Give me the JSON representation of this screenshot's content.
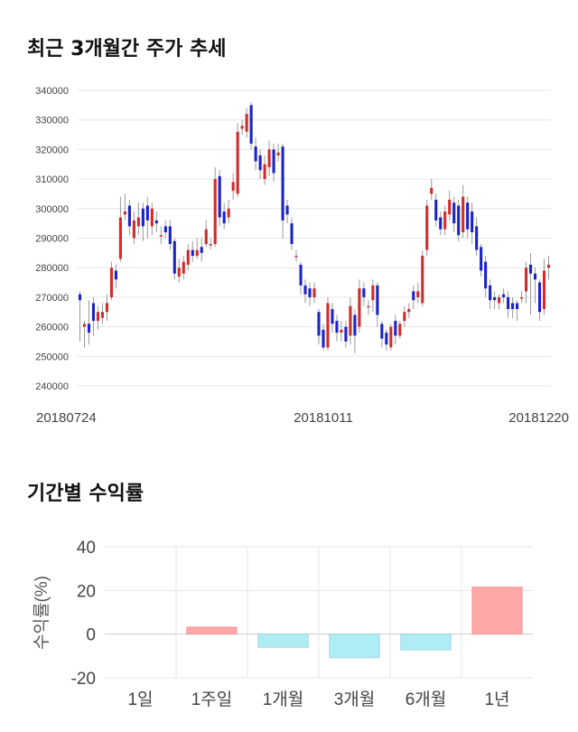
{
  "titles": {
    "price_trend": "최근 3개월간 주가 추세",
    "period_return": "기간별 수익률"
  },
  "colors": {
    "up": "#d42a2a",
    "down": "#1a22c9",
    "positive_bar": "#ffa8a8",
    "negative_bar": "#b0ecf4",
    "grid": "#e6e6e6"
  },
  "chart_data": [
    {
      "type": "candlestick",
      "title": "",
      "ylim": [
        240000,
        340000
      ],
      "y_ticks": [
        "340000",
        "330000",
        "320000",
        "310000",
        "300000",
        "290000",
        "280000",
        "270000",
        "260000",
        "250000",
        "240000"
      ],
      "x_ticks": [
        {
          "label": "20180724",
          "index": 0
        },
        {
          "label": "20181011",
          "index": 54
        },
        {
          "label": "20181220",
          "index": 103
        }
      ],
      "grid": true,
      "candles": [
        [
          271000,
          269000,
          272000,
          255000
        ],
        [
          260000,
          261000,
          262000,
          253000
        ],
        [
          261000,
          258000,
          269000,
          254000
        ],
        [
          268000,
          262000,
          270000,
          257000
        ],
        [
          262000,
          265000,
          267000,
          259000
        ],
        [
          263000,
          265000,
          268000,
          261000
        ],
        [
          265000,
          268000,
          271000,
          262000
        ],
        [
          270000,
          280000,
          282000,
          269000
        ],
        [
          279000,
          276000,
          281000,
          273000
        ],
        [
          283000,
          297000,
          304000,
          282000
        ],
        [
          298000,
          299000,
          305000,
          296000
        ],
        [
          301000,
          294000,
          303000,
          291000
        ],
        [
          290000,
          296000,
          299000,
          288000
        ],
        [
          294000,
          297000,
          302000,
          291000
        ],
        [
          300000,
          294000,
          302000,
          289000
        ],
        [
          301000,
          296000,
          304000,
          290000
        ],
        [
          294000,
          300000,
          302000,
          291000
        ],
        [
          296000,
          295000,
          299000,
          292000
        ],
        [
          291000,
          291000,
          294000,
          288000
        ],
        [
          294000,
          292000,
          296000,
          290000
        ],
        [
          294000,
          288000,
          296000,
          286000
        ],
        [
          289000,
          278000,
          290000,
          276000
        ],
        [
          277000,
          280000,
          283000,
          275000
        ],
        [
          278000,
          282000,
          284000,
          276000
        ],
        [
          281000,
          286000,
          288000,
          279000
        ],
        [
          286000,
          284000,
          289000,
          282000
        ],
        [
          284000,
          286000,
          290000,
          283000
        ],
        [
          287000,
          285000,
          290000,
          282000
        ],
        [
          288000,
          293000,
          296000,
          287000
        ],
        [
          288000,
          288000,
          290000,
          286000
        ],
        [
          288000,
          310000,
          314000,
          287000
        ],
        [
          311000,
          297000,
          313000,
          294000
        ],
        [
          299000,
          295000,
          302000,
          293000
        ],
        [
          297000,
          300000,
          303000,
          295000
        ],
        [
          306000,
          309000,
          312000,
          303000
        ],
        [
          305000,
          326000,
          329000,
          304000
        ],
        [
          327000,
          328000,
          330000,
          325000
        ],
        [
          326000,
          332000,
          334000,
          324000
        ],
        [
          335000,
          322000,
          336000,
          320000
        ],
        [
          321000,
          316000,
          324000,
          313000
        ],
        [
          318000,
          313000,
          320000,
          310000
        ],
        [
          310000,
          315000,
          318000,
          308000
        ],
        [
          314000,
          320000,
          323000,
          311000
        ],
        [
          320000,
          312000,
          322000,
          309000
        ],
        [
          318000,
          319000,
          322000,
          316000
        ],
        [
          321000,
          296000,
          322000,
          290000
        ],
        [
          301000,
          298000,
          303000,
          295000
        ],
        [
          295000,
          288000,
          297000,
          286000
        ],
        [
          284000,
          284000,
          286000,
          282000
        ],
        [
          281000,
          274000,
          282000,
          271000
        ],
        [
          274000,
          271000,
          276000,
          268000
        ],
        [
          273000,
          270000,
          275000,
          267000
        ],
        [
          270000,
          273000,
          275000,
          268000
        ],
        [
          265000,
          257000,
          266000,
          254000
        ],
        [
          259000,
          253000,
          261000,
          252000
        ],
        [
          253000,
          268000,
          270000,
          252000
        ],
        [
          266000,
          261000,
          268000,
          258000
        ],
        [
          262000,
          258000,
          264000,
          255000
        ],
        [
          258000,
          259000,
          262000,
          255000
        ],
        [
          260000,
          255000,
          262000,
          253000
        ],
        [
          257000,
          267000,
          270000,
          254000
        ],
        [
          264000,
          257000,
          266000,
          251000
        ],
        [
          260000,
          273000,
          276000,
          258000
        ],
        [
          273000,
          270000,
          275000,
          267000
        ],
        [
          267000,
          267000,
          269000,
          264000
        ],
        [
          269000,
          274000,
          276000,
          265000
        ],
        [
          274000,
          264000,
          275000,
          260000
        ],
        [
          261000,
          256000,
          262000,
          253000
        ],
        [
          258000,
          254000,
          259000,
          252000
        ],
        [
          253000,
          260000,
          261000,
          252000
        ],
        [
          262000,
          257000,
          264000,
          254000
        ],
        [
          257000,
          261000,
          262000,
          256000
        ],
        [
          262000,
          265000,
          267000,
          260000
        ],
        [
          265000,
          266000,
          268000,
          263000
        ],
        [
          272000,
          269000,
          274000,
          266000
        ],
        [
          270000,
          272000,
          275000,
          268000
        ],
        [
          268000,
          284000,
          286000,
          267000
        ],
        [
          286000,
          301000,
          303000,
          284000
        ],
        [
          305000,
          307000,
          310000,
          303000
        ],
        [
          303000,
          296000,
          305000,
          294000
        ],
        [
          297000,
          293000,
          299000,
          291000
        ],
        [
          293000,
          299000,
          301000,
          291000
        ],
        [
          298000,
          303000,
          306000,
          296000
        ],
        [
          302000,
          295000,
          304000,
          292000
        ],
        [
          301000,
          291000,
          303000,
          289000
        ],
        [
          292000,
          304000,
          308000,
          290000
        ],
        [
          302000,
          293000,
          304000,
          290000
        ],
        [
          299000,
          292000,
          302000,
          288000
        ],
        [
          294000,
          286000,
          297000,
          284000
        ],
        [
          287000,
          279000,
          288000,
          277000
        ],
        [
          282000,
          273000,
          284000,
          270000
        ],
        [
          274000,
          269000,
          276000,
          266000
        ],
        [
          270000,
          269000,
          272000,
          266000
        ],
        [
          268000,
          270000,
          271000,
          266000
        ],
        [
          271000,
          270000,
          273000,
          268000
        ],
        [
          270000,
          266000,
          272000,
          263000
        ],
        [
          268000,
          266000,
          270000,
          263000
        ],
        [
          268000,
          266000,
          269000,
          262000
        ],
        [
          270000,
          270000,
          272000,
          268000
        ],
        [
          272000,
          280000,
          282000,
          268000
        ],
        [
          281000,
          278000,
          285000,
          264000
        ],
        [
          278000,
          276000,
          280000,
          268000
        ],
        [
          275000,
          265000,
          276000,
          262000
        ],
        [
          266000,
          279000,
          283000,
          264000
        ],
        [
          280000,
          281000,
          284000,
          276000
        ]
      ]
    },
    {
      "type": "bar",
      "title": "",
      "ylabel": "수익률(%)",
      "categories": [
        "1일",
        "1주일",
        "1개월",
        "3개월",
        "6개월",
        "1년"
      ],
      "values": [
        0,
        3.2,
        -6.0,
        -10.8,
        -7.2,
        21.5
      ],
      "ylim": [
        -20,
        40
      ],
      "y_ticks": [
        "40",
        "20",
        "0",
        "-20"
      ],
      "grid": true
    }
  ]
}
